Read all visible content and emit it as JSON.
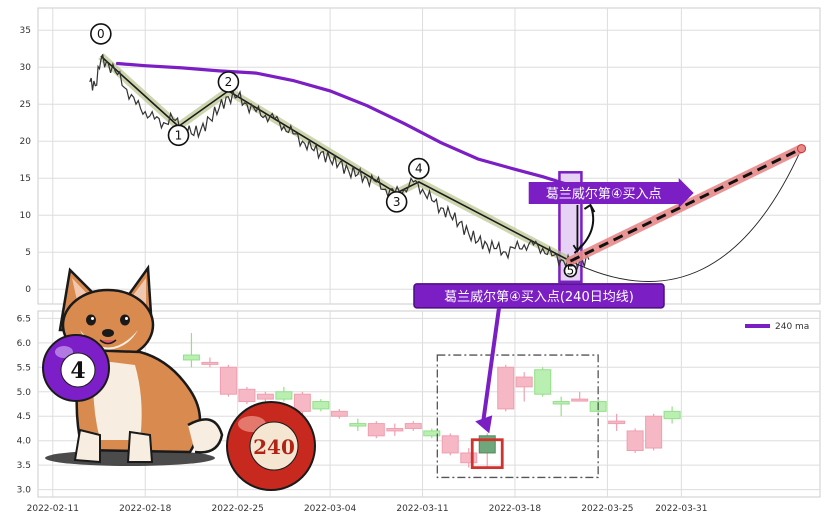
{
  "chart_data": [
    {
      "type": "line",
      "ylim": [
        -2,
        38
      ],
      "yticks": [
        0,
        5,
        10,
        15,
        20,
        25,
        30,
        35
      ],
      "grid": true,
      "series": [
        {
          "kind": "price",
          "color": "#333333",
          "points": [
            [
              2.0,
              28
            ],
            [
              2.3,
              27.5
            ],
            [
              2.6,
              31
            ],
            [
              3.0,
              30.5
            ],
            [
              3.5,
              29
            ],
            [
              4.0,
              27
            ],
            [
              4.5,
              25
            ],
            [
              5.0,
              24
            ],
            [
              5.5,
              23
            ],
            [
              6.0,
              22.5
            ],
            [
              6.5,
              23
            ],
            [
              7.0,
              22
            ],
            [
              7.5,
              21
            ],
            [
              8.0,
              21.5
            ],
            [
              8.5,
              23
            ],
            [
              9.0,
              24.5
            ],
            [
              9.5,
              26
            ],
            [
              10.0,
              26
            ],
            [
              10.5,
              25
            ],
            [
              11.0,
              24
            ],
            [
              11.5,
              23.5
            ],
            [
              12.0,
              23
            ],
            [
              12.5,
              22
            ],
            [
              13.0,
              21
            ],
            [
              13.5,
              20
            ],
            [
              14.0,
              19
            ],
            [
              14.5,
              18.5
            ],
            [
              15.0,
              17.5
            ],
            [
              15.5,
              17
            ],
            [
              16.0,
              16
            ],
            [
              16.5,
              15.5
            ],
            [
              17.0,
              15
            ],
            [
              17.5,
              14.5
            ],
            [
              18.0,
              13.5
            ],
            [
              18.5,
              13
            ],
            [
              19.0,
              13.5
            ],
            [
              19.5,
              14.5
            ],
            [
              20.0,
              13.5
            ],
            [
              20.5,
              12
            ],
            [
              21.0,
              11
            ],
            [
              21.5,
              10
            ],
            [
              22.0,
              9
            ],
            [
              22.5,
              7.5
            ],
            [
              23.0,
              6.5
            ],
            [
              23.5,
              6
            ],
            [
              24.0,
              5.5
            ],
            [
              24.5,
              5
            ],
            [
              25.0,
              5.5
            ],
            [
              25.5,
              6
            ],
            [
              26.0,
              6
            ],
            [
              26.5,
              5.5
            ],
            [
              27.0,
              4.5
            ],
            [
              27.5,
              4
            ],
            [
              28.0,
              3.5
            ],
            [
              28.5,
              3.8
            ],
            [
              29.0,
              4
            ]
          ]
        },
        {
          "kind": "ma240",
          "color": "#7b1fc4",
          "points": [
            [
              3.5,
              30.5
            ],
            [
              5,
              30.2
            ],
            [
              7,
              29.9
            ],
            [
              9,
              29.5
            ],
            [
              11,
              29.2
            ],
            [
              13,
              28.2
            ],
            [
              15,
              26.8
            ],
            [
              17,
              24.8
            ],
            [
              19,
              22.4
            ],
            [
              21,
              19.8
            ],
            [
              23,
              17.6
            ],
            [
              25,
              16.2
            ],
            [
              26.5,
              15.2
            ],
            [
              27.8,
              14.2
            ]
          ]
        },
        {
          "kind": "wave",
          "color": "#6b7a3a",
          "points": [
            [
              2.6,
              31.5
            ],
            [
              6.8,
              22
            ],
            [
              9.5,
              26.8
            ],
            [
              18.6,
              13
            ],
            [
              19.8,
              14.5
            ],
            [
              28.0,
              3.8
            ]
          ]
        },
        {
          "kind": "forecast",
          "color": "#000000",
          "points": [
            [
              28.0,
              3.8
            ],
            [
              40.5,
              19
            ]
          ]
        }
      ],
      "wave_labels": [
        {
          "text": "0",
          "x": 2.6,
          "y": 34.5
        },
        {
          "text": "1",
          "x": 6.8,
          "y": 20.8
        },
        {
          "text": "2",
          "x": 9.5,
          "y": 28.0
        },
        {
          "text": "3",
          "x": 18.6,
          "y": 11.8
        },
        {
          "text": "4",
          "x": 19.8,
          "y": 16.3
        },
        {
          "text": "5",
          "x": 28.0,
          "y": 2.5
        }
      ],
      "annotations": [
        {
          "text": "葛兰威尔第④买入点",
          "x": 29.8,
          "y": 13.0
        },
        {
          "text": "葛兰威尔第④买入点(240日均线)",
          "x": 26.3,
          "y": -0.9
        }
      ]
    },
    {
      "type": "bar",
      "ylim": [
        2.85,
        6.65
      ],
      "yticks": [
        3.0,
        3.5,
        4.0,
        4.5,
        5.0,
        5.5,
        6.0,
        6.5
      ],
      "xticks": [
        "2022-02-11",
        "2022-02-18",
        "2022-02-25",
        "2022-03-04",
        "2022-03-11",
        "2022-03-18",
        "2022-03-25",
        "2022-03-31"
      ],
      "grid": true,
      "legend": {
        "label": "240 ma",
        "position": "top-right"
      },
      "candles": [
        {
          "x": 7.5,
          "o": 5.75,
          "c": 5.65,
          "h": 6.2,
          "l": 5.5
        },
        {
          "x": 8.5,
          "o": 5.6,
          "c": 5.6,
          "h": 5.7,
          "l": 5.5
        },
        {
          "x": 9.5,
          "o": 4.95,
          "c": 5.5,
          "h": 5.55,
          "l": 4.9
        },
        {
          "x": 10.5,
          "o": 4.8,
          "c": 5.05,
          "h": 5.1,
          "l": 4.75
        },
        {
          "x": 11.5,
          "o": 4.85,
          "c": 4.95,
          "h": 5.0,
          "l": 4.6
        },
        {
          "x": 12.5,
          "o": 5.0,
          "c": 4.85,
          "h": 5.1,
          "l": 4.8
        },
        {
          "x": 13.5,
          "o": 4.6,
          "c": 4.95,
          "h": 5.0,
          "l": 4.5
        },
        {
          "x": 14.5,
          "o": 4.8,
          "c": 4.65,
          "h": 4.85,
          "l": 4.6
        },
        {
          "x": 15.5,
          "o": 4.5,
          "c": 4.6,
          "h": 4.65,
          "l": 4.45
        },
        {
          "x": 16.5,
          "o": 4.35,
          "c": 4.3,
          "h": 4.45,
          "l": 4.2
        },
        {
          "x": 17.5,
          "o": 4.1,
          "c": 4.35,
          "h": 4.4,
          "l": 4.05
        },
        {
          "x": 18.5,
          "o": 4.2,
          "c": 4.25,
          "h": 4.35,
          "l": 4.1
        },
        {
          "x": 19.5,
          "o": 4.25,
          "c": 4.35,
          "h": 4.4,
          "l": 4.2
        },
        {
          "x": 20.5,
          "o": 4.2,
          "c": 4.1,
          "h": 4.25,
          "l": 4.05
        },
        {
          "x": 21.5,
          "o": 3.75,
          "c": 4.1,
          "h": 4.15,
          "l": 3.7
        },
        {
          "x": 22.5,
          "o": 3.55,
          "c": 3.75,
          "h": 3.85,
          "l": 3.45
        },
        {
          "x": 23.5,
          "o": 3.75,
          "c": 4.1,
          "h": 4.15,
          "l": 3.45
        },
        {
          "x": 24.5,
          "o": 4.65,
          "c": 5.5,
          "h": 5.55,
          "l": 4.6
        },
        {
          "x": 25.5,
          "o": 5.1,
          "c": 5.3,
          "h": 5.4,
          "l": 4.8
        },
        {
          "x": 26.5,
          "o": 5.45,
          "c": 4.95,
          "h": 5.5,
          "l": 4.9
        },
        {
          "x": 27.5,
          "o": 4.8,
          "c": 4.75,
          "h": 4.9,
          "l": 4.5
        },
        {
          "x": 28.5,
          "o": 4.85,
          "c": 4.85,
          "h": 5.0,
          "l": 4.8
        },
        {
          "x": 29.5,
          "o": 4.8,
          "c": 4.6,
          "h": 4.85,
          "l": 4.55
        },
        {
          "x": 30.5,
          "o": 4.35,
          "c": 4.4,
          "h": 4.55,
          "l": 4.2
        },
        {
          "x": 31.5,
          "o": 3.8,
          "c": 4.2,
          "h": 4.25,
          "l": 3.75
        },
        {
          "x": 32.5,
          "o": 3.85,
          "c": 4.5,
          "h": 4.55,
          "l": 3.8
        },
        {
          "x": 33.5,
          "o": 4.6,
          "c": 4.45,
          "h": 4.7,
          "l": 4.35
        }
      ],
      "highlight_candle": 16
    }
  ],
  "stickers": {
    "ball_4": "4",
    "ball_240": "240"
  }
}
